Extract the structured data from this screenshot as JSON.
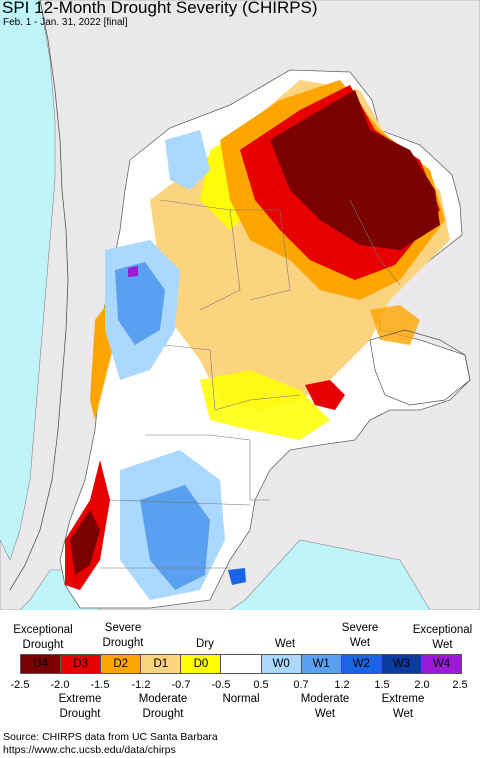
{
  "title": "SPI 12-Month Drought Severity (CHIRPS)",
  "subtitle": "Feb. 1 - Jan. 31, 2022 [final]",
  "colors": {
    "ocean": "#bff5f8",
    "land_outside": "#ece9ec",
    "U4": "#7b0000",
    "D3": "#e60000",
    "D2": "#ffa500",
    "D1": "#fcd37f",
    "D0": "#ffff00",
    "normal": "#ffffff",
    "W0": "#aad8ff",
    "W1": "#5aa0f0",
    "W2": "#1a64e6",
    "W3": "#0a3ca0",
    "W4": "#9a1ad8"
  },
  "legend": {
    "top_labels": {
      "exceptional_drought": "Exceptional\nDrought",
      "severe_drought": "Severe\nDrought",
      "dry": "Dry",
      "wet": "Wet",
      "severe_wet": "Severe\nWet",
      "exceptional_wet": "Exceptional\nWet"
    },
    "classes": [
      "U4",
      "D3",
      "D2",
      "D1",
      "D0",
      "",
      "W0",
      "W1",
      "W2",
      "W3",
      "W4"
    ],
    "ticks": [
      "-2.5",
      "-2.0",
      "-1.5",
      "-1.2",
      "-0.7",
      "-0.5",
      "0.5",
      "0.7",
      "1.2",
      "1.5",
      "2.0",
      "2.5"
    ],
    "bottom_labels": {
      "extreme_drought": "Extreme\nDrought",
      "moderate_drought": "Moderate\nDrought",
      "normal": "Normal",
      "moderate_wet": "Moderate\nWet",
      "extreme_wet": "Extreme\nWet"
    }
  },
  "source": {
    "line1": "Source: CHIRPS data from UC Santa Barbara",
    "line2": "https://www.chc.ucsb.edu/data/chirps"
  }
}
